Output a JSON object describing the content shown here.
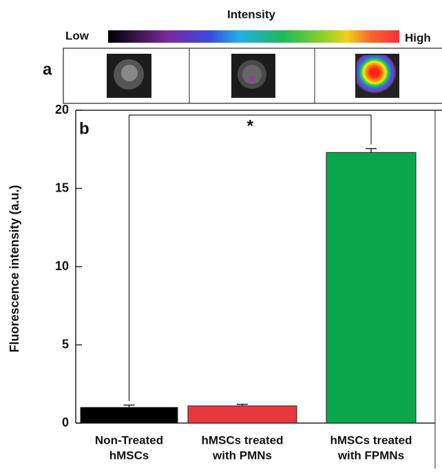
{
  "chart_data": {
    "type": "bar",
    "colorbar": {
      "title": "Intensity",
      "low": "Low",
      "high": "High"
    },
    "panel_labels": [
      "a",
      "b"
    ],
    "ylabel": "Fluorescence intensity (a.u.)",
    "categories": [
      [
        "Non-Treated",
        "hMSCs"
      ],
      [
        "hMSCs treated",
        "with PMNs"
      ],
      [
        "hMSCs treated",
        "with FPMNs"
      ]
    ],
    "values": [
      1.0,
      1.1,
      17.3
    ],
    "errors": [
      0.15,
      0.1,
      0.25
    ],
    "colors": [
      "#000000",
      "#e8383f",
      "#0aa64b"
    ],
    "ylim": [
      0,
      20
    ],
    "yticks": [
      0,
      5,
      10,
      15,
      20
    ],
    "significance": {
      "label": "*",
      "pair": [
        0,
        2
      ]
    }
  }
}
